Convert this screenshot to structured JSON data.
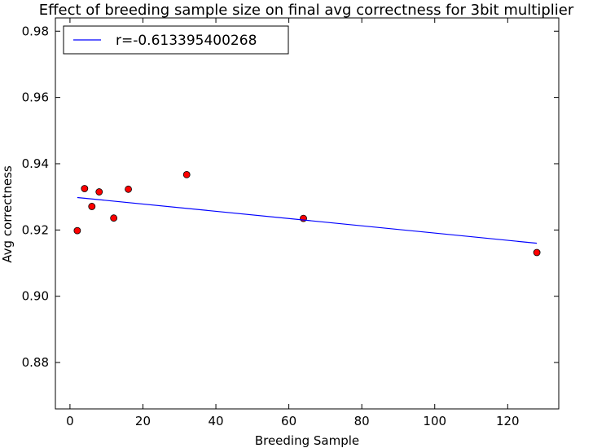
{
  "chart_data": {
    "type": "scatter",
    "title": "Effect of breeding sample size on final avg correctness for 3bit multiplier",
    "xlabel": "Breeding Sample",
    "ylabel": "Avg correctness",
    "xlim": [
      -4,
      134
    ],
    "ylim": [
      0.866,
      0.984
    ],
    "xticks": [
      0,
      20,
      40,
      60,
      80,
      100,
      120
    ],
    "xtick_labels": [
      "0",
      "20",
      "40",
      "60",
      "80",
      "100",
      "120"
    ],
    "yticks": [
      0.88,
      0.9,
      0.92,
      0.94,
      0.96,
      0.98
    ],
    "ytick_labels": [
      "0.88",
      "0.90",
      "0.92",
      "0.94",
      "0.96",
      "0.98"
    ],
    "grid": false,
    "legend_position": "top-left",
    "series": [
      {
        "kind": "points",
        "color": "#ff0000",
        "x": [
          2,
          4,
          6,
          8,
          12,
          16,
          32,
          64,
          128
        ],
        "y": [
          0.9198,
          0.9325,
          0.9271,
          0.9315,
          0.9236,
          0.9323,
          0.9367,
          0.9235,
          0.9132
        ]
      },
      {
        "kind": "line",
        "name": "r=-0.613395400268",
        "color": "#0000ff",
        "x": [
          2,
          128
        ],
        "y": [
          0.9298,
          0.916
        ]
      }
    ]
  }
}
